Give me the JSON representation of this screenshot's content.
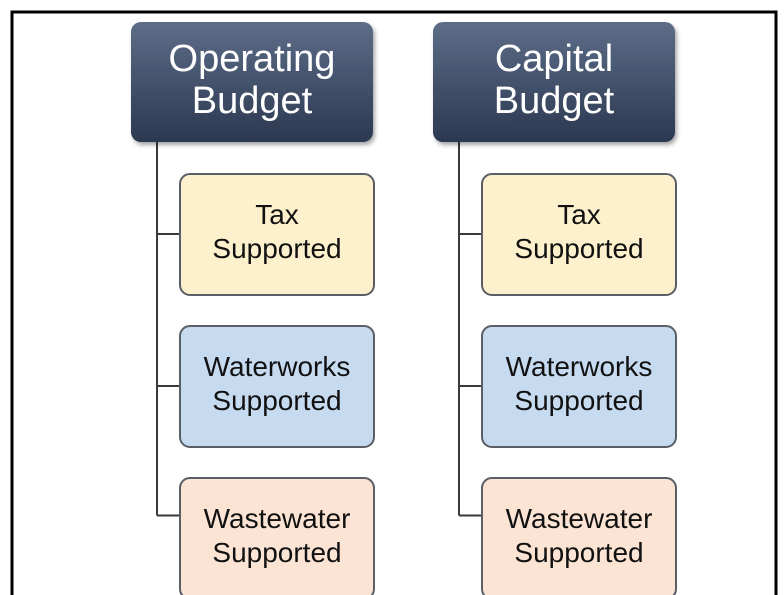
{
  "columns": [
    {
      "title": [
        "Operating",
        "Budget"
      ],
      "children": [
        [
          "Tax",
          "Supported"
        ],
        [
          "Waterworks",
          "Supported"
        ],
        [
          "Wastewater",
          "Supported"
        ]
      ]
    },
    {
      "title": [
        "Capital",
        "Budget"
      ],
      "children": [
        [
          "Tax",
          "Supported"
        ],
        [
          "Waterworks",
          "Supported"
        ],
        [
          "Wastewater",
          "Supported"
        ]
      ]
    }
  ]
}
